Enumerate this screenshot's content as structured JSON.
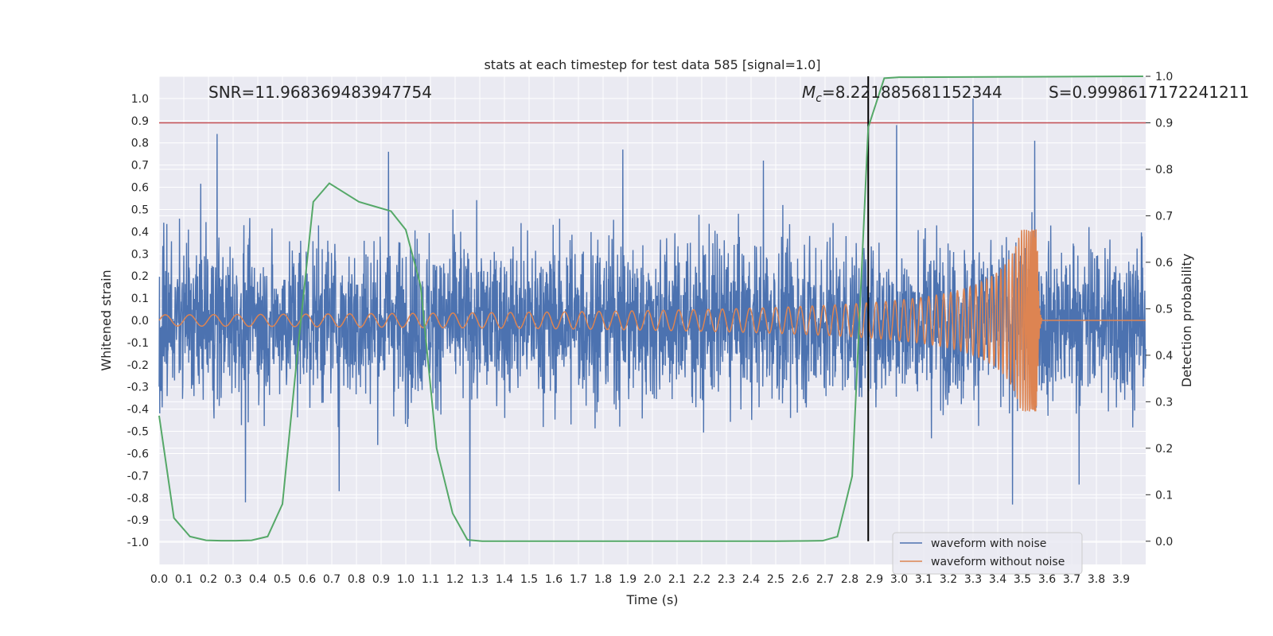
{
  "chart_data": {
    "type": "line",
    "title": "stats at each timestep for test data 585 [signal=1.0]",
    "xlabel": "Time (s)",
    "ylabel": "Whitened strain",
    "y2label": "Detection probability",
    "xlim": [
      0.0,
      4.0
    ],
    "ylim": [
      -1.1,
      1.1
    ],
    "y2lim": [
      -0.05,
      1.0
    ],
    "x_ticks": [
      "0.0",
      "0.1",
      "0.2",
      "0.3",
      "0.4",
      "0.5",
      "0.6",
      "0.7",
      "0.8",
      "0.9",
      "1.0",
      "1.1",
      "1.2",
      "1.3",
      "1.4",
      "1.5",
      "1.6",
      "1.7",
      "1.8",
      "1.9",
      "2.0",
      "2.1",
      "2.2",
      "2.3",
      "2.4",
      "2.5",
      "2.6",
      "2.7",
      "2.8",
      "2.9",
      "3.0",
      "3.1",
      "3.2",
      "3.3",
      "3.4",
      "3.5",
      "3.6",
      "3.7",
      "3.8",
      "3.9"
    ],
    "y_ticks": [
      "1.0",
      "0.9",
      "0.8",
      "0.7",
      "0.6",
      "0.5",
      "0.4",
      "0.3",
      "0.2",
      "0.1",
      "0.0",
      "-0.1",
      "-0.2",
      "-0.3",
      "-0.4",
      "-0.5",
      "-0.6",
      "-0.7",
      "-0.8",
      "-0.9",
      "-1.0"
    ],
    "y2_ticks": [
      "1.0",
      "0.9",
      "0.8",
      "0.7",
      "0.6",
      "0.5",
      "0.4",
      "0.3",
      "0.2",
      "0.1",
      "0.0"
    ],
    "grid": true,
    "annotations": {
      "snr": "SNR=11.968369483947754",
      "mc_symbol": "M",
      "mc_sub": "c",
      "mc_value": "=8.221885681152344",
      "s": "S=0.9998617172241211"
    },
    "threshold": {
      "value": 0.9,
      "axis": "y2",
      "color": "#c44e52"
    },
    "detection_time": {
      "x": 2.875,
      "color": "#000000"
    },
    "series": [
      {
        "name": "waveform with noise",
        "color": "#4c72b0",
        "kind": "noise",
        "x_range": [
          0.0,
          4.0
        ],
        "envelope": 0.5,
        "peaks": [
          {
            "x": 0.235,
            "y": 0.84
          },
          {
            "x": 0.35,
            "y": -0.82
          },
          {
            "x": 0.73,
            "y": -0.77
          },
          {
            "x": 0.93,
            "y": 0.76
          },
          {
            "x": 1.26,
            "y": -1.02
          },
          {
            "x": 1.88,
            "y": 0.77
          },
          {
            "x": 2.45,
            "y": 0.72
          },
          {
            "x": 2.99,
            "y": 0.88
          },
          {
            "x": 3.3,
            "y": 1.0
          },
          {
            "x": 3.46,
            "y": -0.83
          },
          {
            "x": 3.55,
            "y": 0.81
          },
          {
            "x": 3.73,
            "y": -0.74
          }
        ]
      },
      {
        "name": "waveform without noise",
        "color": "#dd8452",
        "kind": "chirp",
        "t_merge": 3.56,
        "start_amplitude": 0.025,
        "peak_amplitude": 0.41
      },
      {
        "name": "detection probability",
        "color": "#55a868",
        "axis": "y2",
        "x": [
          0.0,
          0.06,
          0.125,
          0.19,
          0.25,
          0.31,
          0.375,
          0.44,
          0.5,
          0.56,
          0.625,
          0.69,
          0.75,
          0.81,
          0.875,
          0.94,
          1.0,
          1.06,
          1.125,
          1.19,
          1.25,
          1.31,
          1.5,
          2.0,
          2.5,
          2.69,
          2.75,
          2.81,
          2.875,
          2.94,
          3.0,
          3.5,
          3.99
        ],
        "y": [
          0.27,
          0.05,
          0.01,
          0.002,
          0.001,
          0.001,
          0.002,
          0.01,
          0.08,
          0.4,
          0.73,
          0.77,
          0.75,
          0.73,
          0.72,
          0.71,
          0.67,
          0.55,
          0.2,
          0.06,
          0.003,
          0.0,
          0.0,
          0.0,
          0.0,
          0.001,
          0.01,
          0.14,
          0.89,
          0.996,
          0.998,
          0.999,
          1.0
        ]
      }
    ],
    "legend": {
      "position": "lower-right",
      "entries": [
        {
          "label": "waveform with noise",
          "color": "#4c72b0"
        },
        {
          "label": "waveform without noise",
          "color": "#dd8452"
        }
      ]
    }
  }
}
